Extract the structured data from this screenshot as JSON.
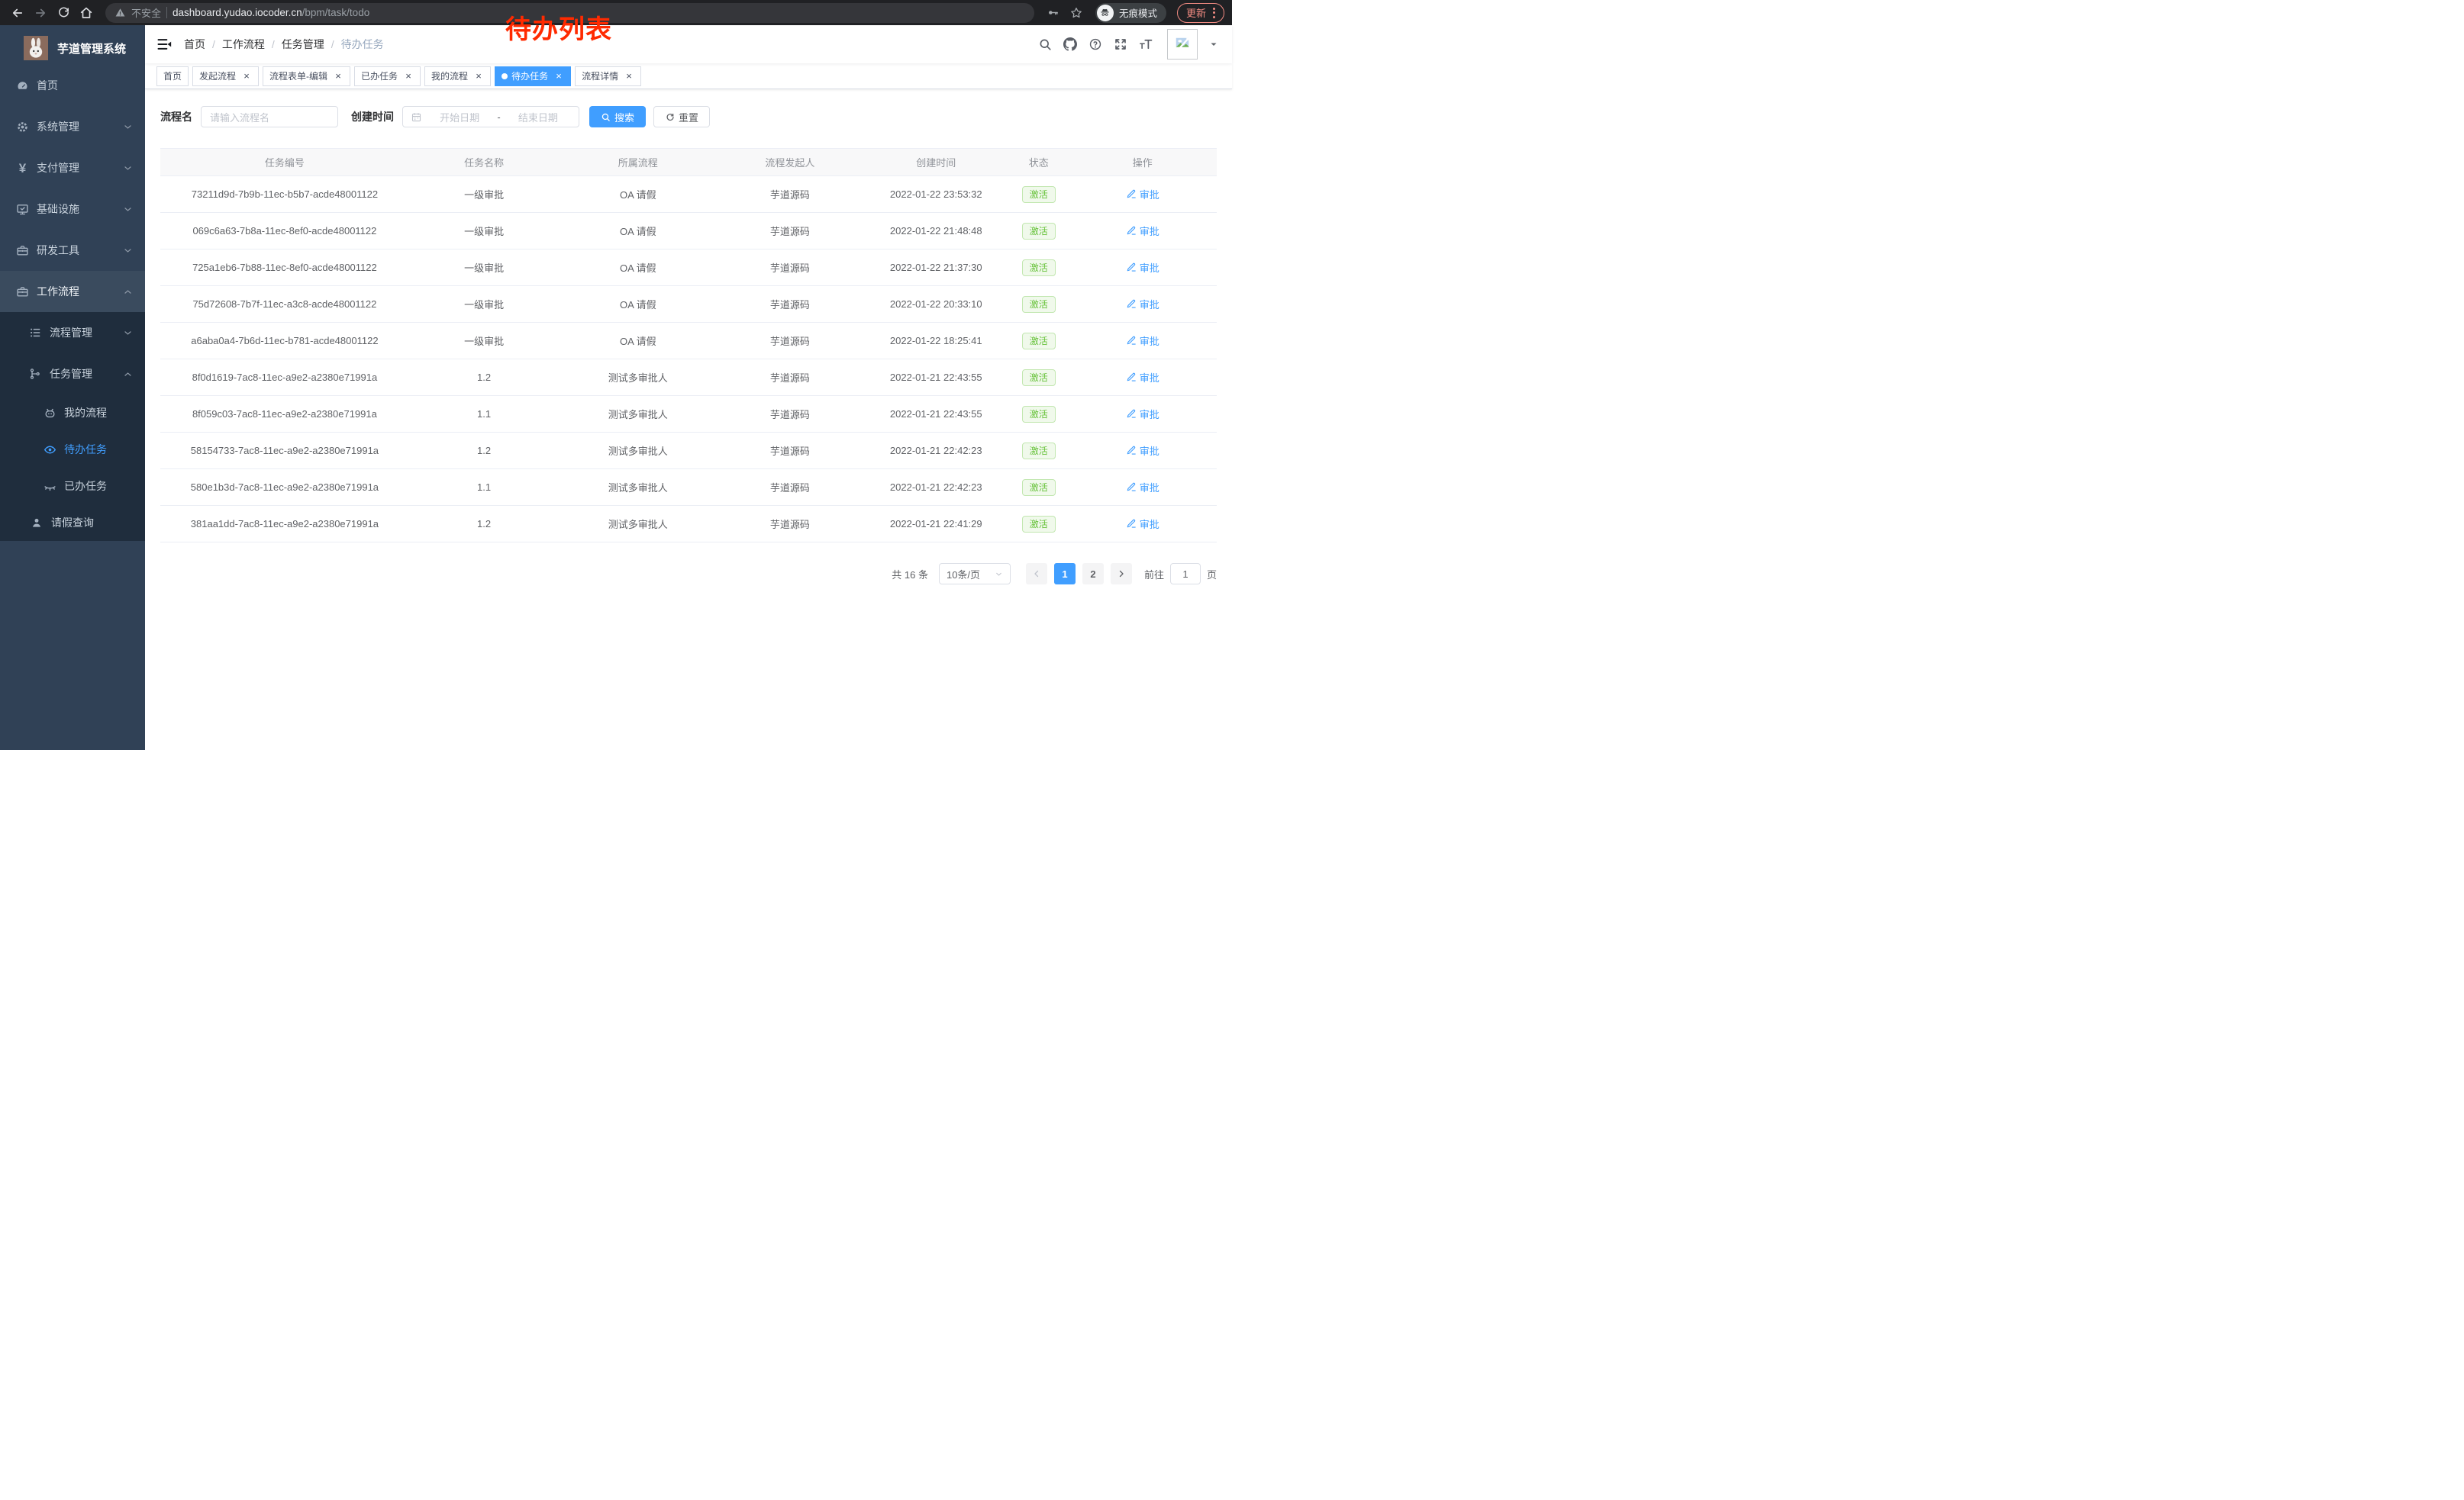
{
  "browser": {
    "security_label": "不安全",
    "url_host": "dashboard.yudao.iocoder.cn",
    "url_path": "/bpm/task/todo",
    "incognito_label": "无痕模式",
    "update_label": "更新"
  },
  "annotation": {
    "text": "待办列表",
    "color": "#ff2a00"
  },
  "sidebar": {
    "title": "芋道管理系统",
    "top_items": [
      {
        "label": "首页",
        "icon": "dashboard-icon",
        "chevron": ""
      },
      {
        "label": "系统管理",
        "icon": "gear-icon",
        "chevron": "down"
      },
      {
        "label": "支付管理",
        "icon": "yen-icon",
        "chevron": "down"
      },
      {
        "label": "基础设施",
        "icon": "monitor-icon",
        "chevron": "down"
      },
      {
        "label": "研发工具",
        "icon": "toolbox-icon",
        "chevron": "down"
      },
      {
        "label": "工作流程",
        "icon": "briefcase-icon",
        "chevron": "up",
        "active": true
      }
    ],
    "sub_items": [
      {
        "label": "流程管理",
        "icon": "list-tree-icon",
        "chevron": "down",
        "pad": 38,
        "tall": true
      },
      {
        "label": "任务管理",
        "icon": "sitemap-icon",
        "chevron": "up",
        "pad": 38,
        "tall": true
      },
      {
        "label": "我的流程",
        "icon": "robot-icon",
        "chevron": "",
        "pad": 57
      },
      {
        "label": "待办任务",
        "icon": "eye-icon",
        "chevron": "",
        "pad": 57,
        "selected": true
      },
      {
        "label": "已办任务",
        "icon": "eye-closed-icon",
        "chevron": "",
        "pad": 57
      },
      {
        "label": "请假查询",
        "icon": "user-icon",
        "chevron": "",
        "pad": 40
      }
    ]
  },
  "header": {
    "breadcrumb": [
      "首页",
      "工作流程",
      "任务管理",
      "待办任务"
    ],
    "separator": "/"
  },
  "tabs": [
    {
      "label": "首页",
      "closable": false,
      "active": false
    },
    {
      "label": "发起流程",
      "closable": true,
      "active": false
    },
    {
      "label": "流程表单-编辑",
      "closable": true,
      "active": false
    },
    {
      "label": "已办任务",
      "closable": true,
      "active": false
    },
    {
      "label": "我的流程",
      "closable": true,
      "active": false
    },
    {
      "label": "待办任务",
      "closable": true,
      "active": true
    },
    {
      "label": "流程详情",
      "closable": true,
      "active": false
    }
  ],
  "filters": {
    "name_label": "流程名",
    "name_placeholder": "请输入流程名",
    "time_label": "创建时间",
    "start_placeholder": "开始日期",
    "range_separator": "-",
    "end_placeholder": "结束日期",
    "search_label": "搜索",
    "reset_label": "重置"
  },
  "table": {
    "columns": [
      "任务编号",
      "任务名称",
      "所属流程",
      "流程发起人",
      "创建时间",
      "状态",
      "操作"
    ],
    "status_label": "激活",
    "action_label": "审批",
    "rows": [
      {
        "id": "73211d9d-7b9b-11ec-b5b7-acde48001122",
        "name": "一级审批",
        "process": "OA 请假",
        "initiator": "芋道源码",
        "created": "2022-01-22 23:53:32"
      },
      {
        "id": "069c6a63-7b8a-11ec-8ef0-acde48001122",
        "name": "一级审批",
        "process": "OA 请假",
        "initiator": "芋道源码",
        "created": "2022-01-22 21:48:48"
      },
      {
        "id": "725a1eb6-7b88-11ec-8ef0-acde48001122",
        "name": "一级审批",
        "process": "OA 请假",
        "initiator": "芋道源码",
        "created": "2022-01-22 21:37:30"
      },
      {
        "id": "75d72608-7b7f-11ec-a3c8-acde48001122",
        "name": "一级审批",
        "process": "OA 请假",
        "initiator": "芋道源码",
        "created": "2022-01-22 20:33:10"
      },
      {
        "id": "a6aba0a4-7b6d-11ec-b781-acde48001122",
        "name": "一级审批",
        "process": "OA 请假",
        "initiator": "芋道源码",
        "created": "2022-01-22 18:25:41"
      },
      {
        "id": "8f0d1619-7ac8-11ec-a9e2-a2380e71991a",
        "name": "1.2",
        "process": "测试多审批人",
        "initiator": "芋道源码",
        "created": "2022-01-21 22:43:55"
      },
      {
        "id": "8f059c03-7ac8-11ec-a9e2-a2380e71991a",
        "name": "1.1",
        "process": "测试多审批人",
        "initiator": "芋道源码",
        "created": "2022-01-21 22:43:55"
      },
      {
        "id": "58154733-7ac8-11ec-a9e2-a2380e71991a",
        "name": "1.2",
        "process": "测试多审批人",
        "initiator": "芋道源码",
        "created": "2022-01-21 22:42:23"
      },
      {
        "id": "580e1b3d-7ac8-11ec-a9e2-a2380e71991a",
        "name": "1.1",
        "process": "测试多审批人",
        "initiator": "芋道源码",
        "created": "2022-01-21 22:42:23"
      },
      {
        "id": "381aa1dd-7ac8-11ec-a9e2-a2380e71991a",
        "name": "1.2",
        "process": "测试多审批人",
        "initiator": "芋道源码",
        "created": "2022-01-21 22:41:29"
      }
    ]
  },
  "pagination": {
    "total": "共 16 条",
    "page_size": "10条/页",
    "pages": [
      "1",
      "2"
    ],
    "active_page": "1",
    "goto_label": "前往",
    "goto_value": "1",
    "page_unit": "页"
  },
  "colors": {
    "accent": "#409eff",
    "sidebar_bg": "#304156",
    "submenu_bg": "#1f2d3d",
    "status_green": "#67c23a",
    "annotation_red": "#ff2a00"
  }
}
